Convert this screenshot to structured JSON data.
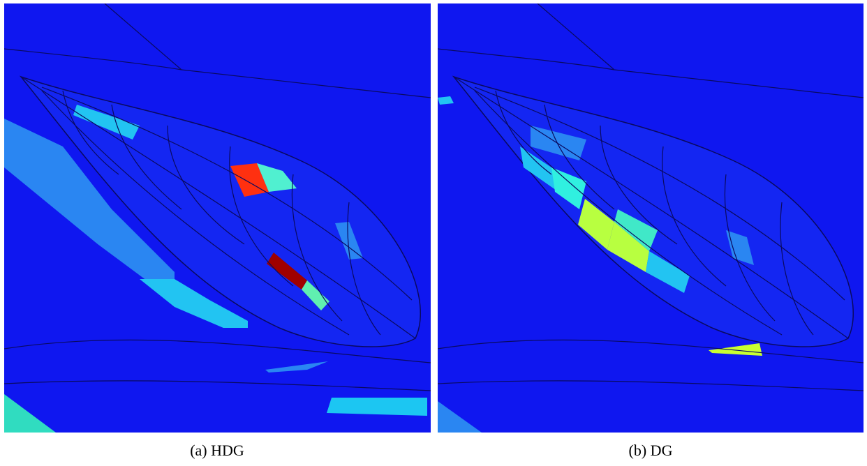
{
  "figure": {
    "panels": [
      {
        "caption": "(a) HDG"
      },
      {
        "caption": "(b) DG"
      }
    ]
  }
}
